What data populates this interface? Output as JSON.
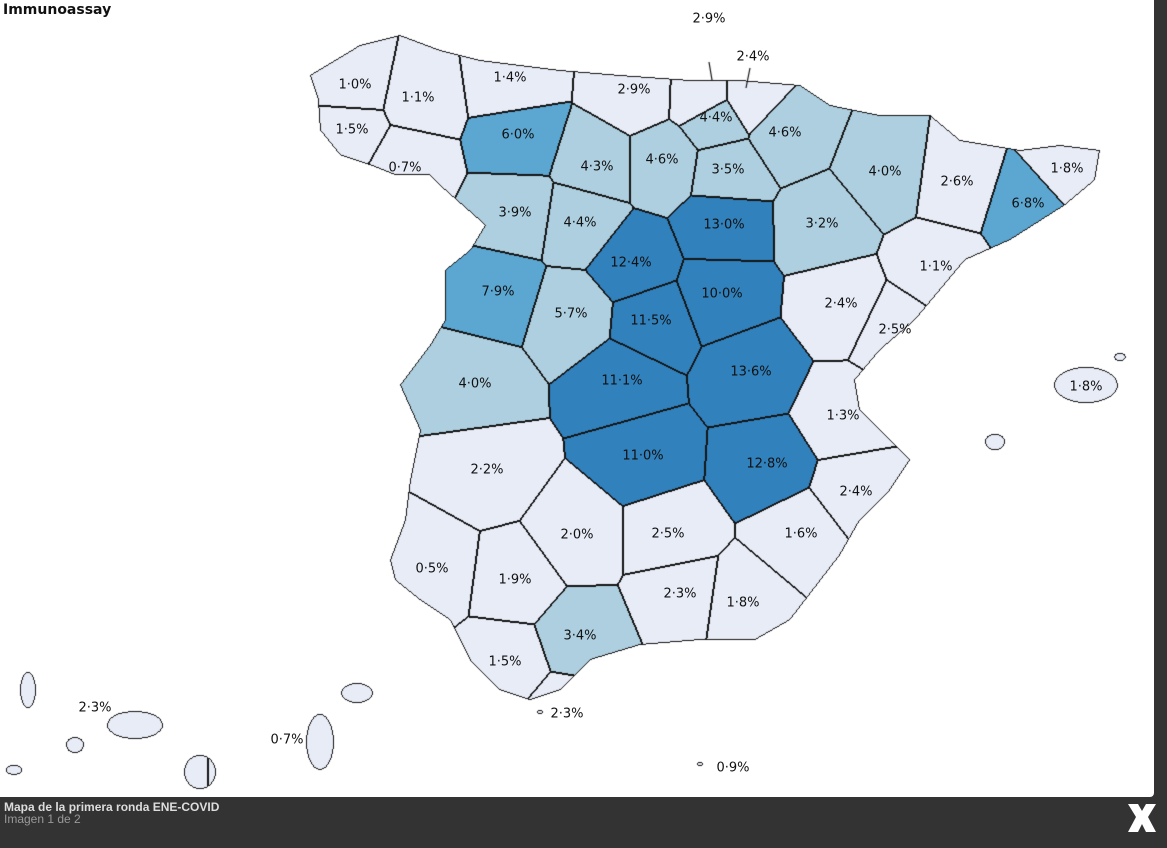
{
  "title": "Immunoassay",
  "colors": {
    "light": "#e8ecf7",
    "midlight": "#aecfdf",
    "mid": "#5ba7d2",
    "dark": "#3181bd",
    "border": "#111111"
  },
  "provinces": [
    {
      "value": "1·0%",
      "level": "light"
    },
    {
      "value": "1·1%",
      "level": "light"
    },
    {
      "value": "1·5%",
      "level": "light"
    },
    {
      "value": "0·7%",
      "level": "light"
    },
    {
      "value": "1·4%",
      "level": "light"
    },
    {
      "value": "6·0%",
      "level": "mid"
    },
    {
      "value": "2·9%",
      "level": "light"
    },
    {
      "value": "2·9%",
      "level": "light"
    },
    {
      "value": "2·4%",
      "level": "light"
    },
    {
      "value": "4·3%",
      "level": "midlight"
    },
    {
      "value": "4·6%",
      "level": "midlight"
    },
    {
      "value": "4·4%",
      "level": "midlight"
    },
    {
      "value": "4·6%",
      "level": "midlight"
    },
    {
      "value": "3·5%",
      "level": "midlight"
    },
    {
      "value": "4·0%",
      "level": "midlight"
    },
    {
      "value": "2·6%",
      "level": "light"
    },
    {
      "value": "6·8%",
      "level": "mid"
    },
    {
      "value": "1·8%",
      "level": "light"
    },
    {
      "value": "3·9%",
      "level": "midlight"
    },
    {
      "value": "4·4%",
      "level": "midlight"
    },
    {
      "value": "13·0%",
      "level": "dark"
    },
    {
      "value": "3·2%",
      "level": "midlight"
    },
    {
      "value": "1·1%",
      "level": "light"
    },
    {
      "value": "12·4%",
      "level": "dark"
    },
    {
      "value": "7·9%",
      "level": "mid"
    },
    {
      "value": "5·7%",
      "level": "midlight"
    },
    {
      "value": "10·0%",
      "level": "dark"
    },
    {
      "value": "11·5%",
      "level": "dark"
    },
    {
      "value": "2·4%",
      "level": "light"
    },
    {
      "value": "2·5%",
      "level": "light"
    },
    {
      "value": "4·0%",
      "level": "midlight"
    },
    {
      "value": "11·1%",
      "level": "dark"
    },
    {
      "value": "13·6%",
      "level": "dark"
    },
    {
      "value": "1·3%",
      "level": "light"
    },
    {
      "value": "1·8%",
      "level": "light"
    },
    {
      "value": "2·2%",
      "level": "light"
    },
    {
      "value": "11·0%",
      "level": "dark"
    },
    {
      "value": "12·8%",
      "level": "dark"
    },
    {
      "value": "2·4%",
      "level": "light"
    },
    {
      "value": "2·0%",
      "level": "light"
    },
    {
      "value": "2·5%",
      "level": "light"
    },
    {
      "value": "1·6%",
      "level": "light"
    },
    {
      "value": "0·5%",
      "level": "light"
    },
    {
      "value": "1·9%",
      "level": "light"
    },
    {
      "value": "2·3%",
      "level": "light"
    },
    {
      "value": "1·8%",
      "level": "light"
    },
    {
      "value": "3·4%",
      "level": "midlight"
    },
    {
      "value": "1·5%",
      "level": "light"
    },
    {
      "value": "2·3%",
      "level": "light"
    },
    {
      "value": "2·3%",
      "level": "light"
    },
    {
      "value": "0·7%",
      "level": "light"
    },
    {
      "value": "0·9%",
      "level": "light"
    }
  ],
  "caption": {
    "title": "Mapa de la primera ronda ENE-COVID",
    "count": "Imagen 1 de 2"
  },
  "close_icon": "close-x-icon"
}
